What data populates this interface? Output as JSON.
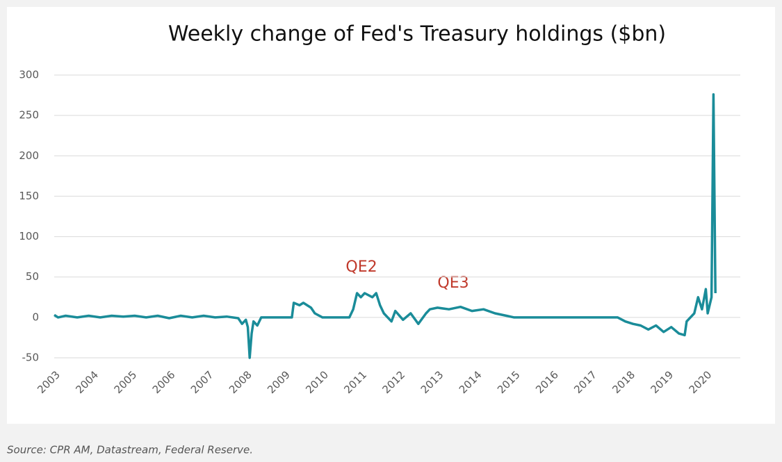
{
  "chart_data": {
    "type": "line",
    "title": "Weekly change of Fed's Treasury holdings ($bn)",
    "source": "Source:  CPR AM, Datastream,  Federal Reserve.",
    "annotations": [
      "QE2",
      "QE3"
    ],
    "x": [
      2003.0,
      2003.1,
      2003.3,
      2003.6,
      2003.9,
      2004.2,
      2004.5,
      2004.8,
      2005.1,
      2005.4,
      2005.7,
      2006.0,
      2006.3,
      2006.6,
      2006.9,
      2007.2,
      2007.5,
      2007.8,
      2007.9,
      2008.0,
      2008.05,
      2008.1,
      2008.15,
      2008.2,
      2008.3,
      2008.4,
      2009.0,
      2009.2,
      2009.25,
      2009.4,
      2009.5,
      2009.7,
      2009.8,
      2010.0,
      2010.7,
      2010.8,
      2010.9,
      2011.0,
      2011.1,
      2011.3,
      2011.4,
      2011.5,
      2011.6,
      2011.8,
      2011.9,
      2012.1,
      2012.3,
      2012.5,
      2012.7,
      2012.8,
      2013.0,
      2013.3,
      2013.6,
      2013.9,
      2014.2,
      2014.5,
      2014.8,
      2015.0,
      2017.7,
      2017.9,
      2018.1,
      2018.3,
      2018.5,
      2018.7,
      2018.9,
      2019.1,
      2019.3,
      2019.45,
      2019.5,
      2019.7,
      2019.8,
      2019.9,
      2020.0,
      2020.05,
      2020.15,
      2020.2,
      2020.25
    ],
    "series": [
      {
        "name": "Weekly change",
        "color": "#1a8c99",
        "values": [
          3,
          0,
          2,
          0,
          2,
          0,
          2,
          1,
          2,
          0,
          2,
          -1,
          2,
          0,
          2,
          0,
          1,
          -1,
          -8,
          -3,
          -12,
          -50,
          -20,
          -5,
          -10,
          0,
          0,
          0,
          18,
          15,
          18,
          12,
          5,
          0,
          0,
          10,
          30,
          25,
          30,
          25,
          30,
          15,
          5,
          -5,
          8,
          -3,
          5,
          -8,
          5,
          10,
          12,
          10,
          13,
          8,
          10,
          5,
          2,
          0,
          0,
          -5,
          -8,
          -10,
          -15,
          -10,
          -18,
          -12,
          -20,
          -22,
          -5,
          5,
          25,
          10,
          35,
          5,
          25,
          276,
          30
        ]
      }
    ],
    "xlim": [
      2003,
      2020.9
    ],
    "xticks": [
      2003,
      2004,
      2005,
      2006,
      2007,
      2008,
      2009,
      2010,
      2011,
      2012,
      2013,
      2014,
      2015,
      2016,
      2017,
      2018,
      2019,
      2020
    ],
    "ylim": [
      -50,
      300
    ],
    "yticks": [
      -50,
      0,
      50,
      100,
      150,
      200,
      250,
      300
    ],
    "grid": true
  }
}
